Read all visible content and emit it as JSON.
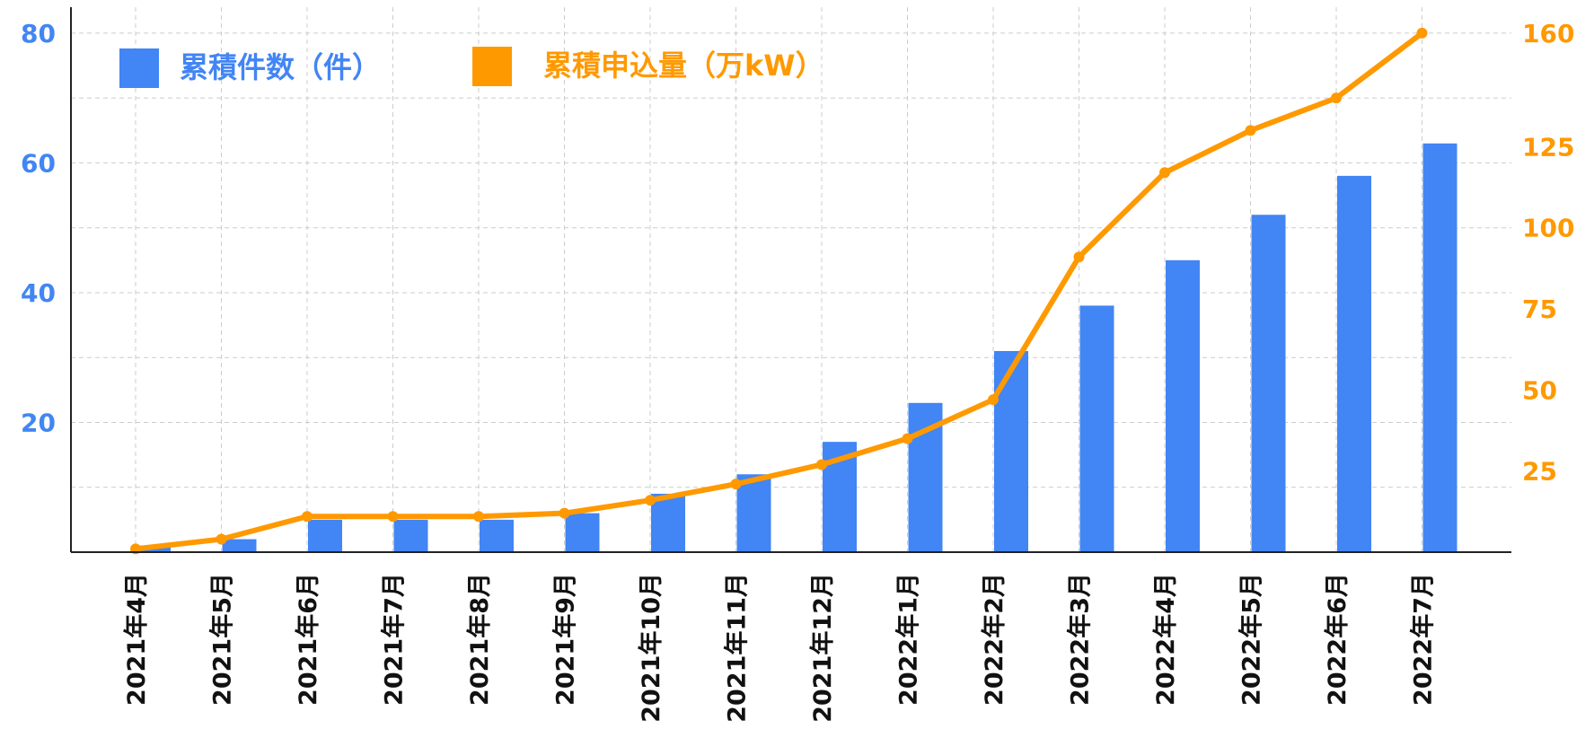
{
  "chart_data": {
    "type": "bar+line",
    "categories": [
      "2021年4月",
      "2021年5月",
      "2021年6月",
      "2021年7月",
      "2021年8月",
      "2021年9月",
      "2021年10月",
      "2021年11月",
      "2021年12月",
      "2022年1月",
      "2022年2月",
      "2022年3月",
      "2022年4月",
      "2022年5月",
      "2022年6月",
      "2022年7月"
    ],
    "series": [
      {
        "name": "累積件数（件）",
        "type": "bar",
        "axis": "left",
        "color": "#4285f4",
        "values": [
          1,
          2,
          5,
          5,
          5,
          6,
          9,
          12,
          17,
          23,
          31,
          38,
          45,
          52,
          58,
          63
        ]
      },
      {
        "name": "累積申込量（万kW）",
        "type": "line",
        "axis": "right",
        "color": "#ff9900",
        "values": [
          1,
          4,
          11,
          11,
          11,
          12,
          16,
          21,
          27,
          35,
          47,
          91,
          117,
          130,
          140,
          160
        ]
      }
    ],
    "left_axis": {
      "ylim": [
        0,
        84
      ],
      "ticks": [
        "20",
        "40",
        "60",
        "80"
      ],
      "tick_values": [
        20,
        40,
        60,
        80
      ]
    },
    "right_axis": {
      "ylim": [
        0,
        168
      ],
      "ticks": [
        "25",
        "50",
        "75",
        "100",
        "125",
        "160"
      ],
      "tick_values": [
        25,
        50,
        75,
        100,
        125,
        160
      ]
    },
    "grid": true,
    "legend_position": "top-left"
  }
}
